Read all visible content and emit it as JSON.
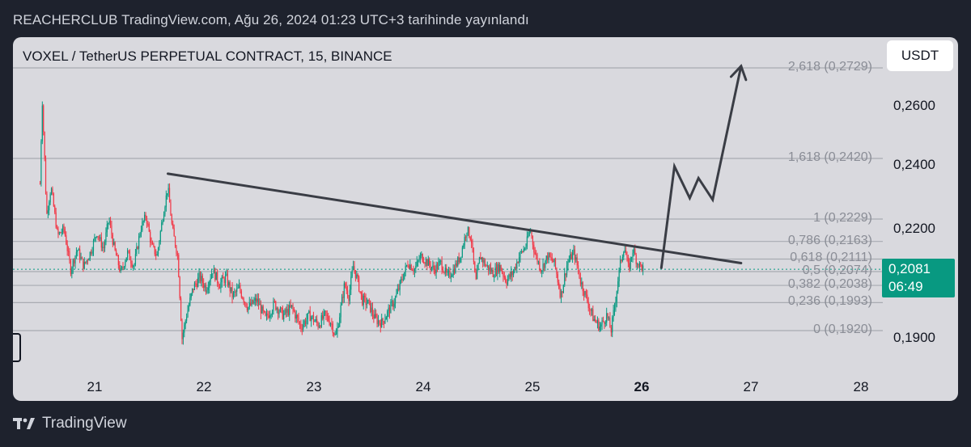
{
  "header": {
    "publish_line": "REACHERCLUB TradingView.com, Ağu 26, 2024 01:23 UTC+3 tarihinde yayınlandı"
  },
  "chart": {
    "symbol_line": "VOXEL / TetherUS PERPETUAL CONTRACT, 15, BINANCE",
    "currency_button": "USDT",
    "last_price": "0,2081",
    "countdown": "06:49",
    "footer_brand": "TradingView"
  },
  "chart_data": {
    "type": "candlestick",
    "exchange": "BINANCE",
    "interval": "15",
    "y_ticks": [
      {
        "label": "0,2600",
        "value": 0.26
      },
      {
        "label": "0,2400",
        "value": 0.24
      },
      {
        "label": "0,2200",
        "value": 0.22
      },
      {
        "label": "0,1900",
        "value": 0.19
      }
    ],
    "x_ticks": [
      {
        "label": "21",
        "day": 21
      },
      {
        "label": "22",
        "day": 22
      },
      {
        "label": "23",
        "day": 23
      },
      {
        "label": "24",
        "day": 24
      },
      {
        "label": "25",
        "day": 25
      },
      {
        "label": "26",
        "day": 26,
        "bold": true
      },
      {
        "label": "27",
        "day": 27
      },
      {
        "label": "28",
        "day": 28
      }
    ],
    "fib_levels": [
      {
        "ratio": 2.618,
        "price": 0.2729,
        "label": "2,618 (0,2729)"
      },
      {
        "ratio": 1.618,
        "price": 0.242,
        "label": "1,618 (0,2420)"
      },
      {
        "ratio": 1,
        "price": 0.2229,
        "label": "1 (0,2229)"
      },
      {
        "ratio": 0.786,
        "price": 0.2163,
        "label": "0,786 (0,2163)"
      },
      {
        "ratio": 0.618,
        "price": 0.2111,
        "label": "0,618 (0,2111)"
      },
      {
        "ratio": 0.5,
        "price": 0.2074,
        "label": "0,5 (0,2074)"
      },
      {
        "ratio": 0.382,
        "price": 0.2038,
        "label": "0,382 (0,2038)"
      },
      {
        "ratio": 0.236,
        "price": 0.1993,
        "label": "0,236 (0,1993)"
      },
      {
        "ratio": 0,
        "price": 0.192,
        "label": "0 (0,1920)"
      }
    ],
    "last_price": 0.2081,
    "trendline": [
      {
        "day": 21.67,
        "price": 0.2372
      },
      {
        "day": 26.91,
        "price": 0.2099
      }
    ],
    "projection_path": [
      {
        "day": 26.18,
        "price": 0.2085
      },
      {
        "day": 26.3,
        "price": 0.2395
      },
      {
        "day": 26.44,
        "price": 0.2295
      },
      {
        "day": 26.52,
        "price": 0.2358
      },
      {
        "day": 26.65,
        "price": 0.229
      },
      {
        "day": 26.91,
        "price": 0.2735
      }
    ],
    "price_path": [
      {
        "day": 20.5,
        "price": 0.234
      },
      {
        "day": 20.52,
        "price": 0.262
      },
      {
        "day": 20.56,
        "price": 0.224
      },
      {
        "day": 20.6,
        "price": 0.233
      },
      {
        "day": 20.66,
        "price": 0.218
      },
      {
        "day": 20.72,
        "price": 0.22
      },
      {
        "day": 20.78,
        "price": 0.208
      },
      {
        "day": 20.84,
        "price": 0.214
      },
      {
        "day": 20.9,
        "price": 0.209
      },
      {
        "day": 20.96,
        "price": 0.213
      },
      {
        "day": 21.02,
        "price": 0.219
      },
      {
        "day": 21.08,
        "price": 0.214
      },
      {
        "day": 21.13,
        "price": 0.223
      },
      {
        "day": 21.18,
        "price": 0.214
      },
      {
        "day": 21.24,
        "price": 0.207
      },
      {
        "day": 21.3,
        "price": 0.213
      },
      {
        "day": 21.36,
        "price": 0.209
      },
      {
        "day": 21.42,
        "price": 0.22
      },
      {
        "day": 21.47,
        "price": 0.224
      },
      {
        "day": 21.52,
        "price": 0.215
      },
      {
        "day": 21.57,
        "price": 0.212
      },
      {
        "day": 21.62,
        "price": 0.223
      },
      {
        "day": 21.67,
        "price": 0.233
      },
      {
        "day": 21.71,
        "price": 0.22
      },
      {
        "day": 21.76,
        "price": 0.212
      },
      {
        "day": 21.8,
        "price": 0.19
      },
      {
        "day": 21.84,
        "price": 0.196
      },
      {
        "day": 21.9,
        "price": 0.203
      },
      {
        "day": 21.96,
        "price": 0.206
      },
      {
        "day": 22.02,
        "price": 0.203
      },
      {
        "day": 22.08,
        "price": 0.208
      },
      {
        "day": 22.14,
        "price": 0.204
      },
      {
        "day": 22.2,
        "price": 0.206
      },
      {
        "day": 22.26,
        "price": 0.201
      },
      {
        "day": 22.32,
        "price": 0.203
      },
      {
        "day": 22.4,
        "price": 0.198
      },
      {
        "day": 22.48,
        "price": 0.2
      },
      {
        "day": 22.56,
        "price": 0.195
      },
      {
        "day": 22.64,
        "price": 0.199
      },
      {
        "day": 22.72,
        "price": 0.196
      },
      {
        "day": 22.8,
        "price": 0.198
      },
      {
        "day": 22.88,
        "price": 0.193
      },
      {
        "day": 22.96,
        "price": 0.196
      },
      {
        "day": 23.04,
        "price": 0.1935
      },
      {
        "day": 23.1,
        "price": 0.196
      },
      {
        "day": 23.16,
        "price": 0.194
      },
      {
        "day": 23.2,
        "price": 0.19
      },
      {
        "day": 23.24,
        "price": 0.197
      },
      {
        "day": 23.28,
        "price": 0.204
      },
      {
        "day": 23.32,
        "price": 0.201
      },
      {
        "day": 23.36,
        "price": 0.209
      },
      {
        "day": 23.4,
        "price": 0.205
      },
      {
        "day": 23.44,
        "price": 0.2
      },
      {
        "day": 23.5,
        "price": 0.199
      },
      {
        "day": 23.56,
        "price": 0.195
      },
      {
        "day": 23.62,
        "price": 0.194
      },
      {
        "day": 23.68,
        "price": 0.197
      },
      {
        "day": 23.74,
        "price": 0.2
      },
      {
        "day": 23.8,
        "price": 0.205
      },
      {
        "day": 23.86,
        "price": 0.21
      },
      {
        "day": 23.92,
        "price": 0.208
      },
      {
        "day": 23.98,
        "price": 0.212
      },
      {
        "day": 24.04,
        "price": 0.21
      },
      {
        "day": 24.1,
        "price": 0.208
      },
      {
        "day": 24.16,
        "price": 0.21
      },
      {
        "day": 24.22,
        "price": 0.206
      },
      {
        "day": 24.28,
        "price": 0.208
      },
      {
        "day": 24.34,
        "price": 0.212
      },
      {
        "day": 24.4,
        "price": 0.22
      },
      {
        "day": 24.44,
        "price": 0.217
      },
      {
        "day": 24.48,
        "price": 0.204
      },
      {
        "day": 24.52,
        "price": 0.212
      },
      {
        "day": 24.58,
        "price": 0.209
      },
      {
        "day": 24.64,
        "price": 0.207
      },
      {
        "day": 24.7,
        "price": 0.209
      },
      {
        "day": 24.76,
        "price": 0.205
      },
      {
        "day": 24.82,
        "price": 0.207
      },
      {
        "day": 24.88,
        "price": 0.212
      },
      {
        "day": 24.94,
        "price": 0.215
      },
      {
        "day": 24.98,
        "price": 0.22
      },
      {
        "day": 25.02,
        "price": 0.213
      },
      {
        "day": 25.08,
        "price": 0.208
      },
      {
        "day": 25.14,
        "price": 0.212
      },
      {
        "day": 25.2,
        "price": 0.21
      },
      {
        "day": 25.26,
        "price": 0.201
      },
      {
        "day": 25.32,
        "price": 0.21
      },
      {
        "day": 25.38,
        "price": 0.213
      },
      {
        "day": 25.44,
        "price": 0.205
      },
      {
        "day": 25.5,
        "price": 0.2
      },
      {
        "day": 25.56,
        "price": 0.195
      },
      {
        "day": 25.62,
        "price": 0.193
      },
      {
        "day": 25.68,
        "price": 0.196
      },
      {
        "day": 25.72,
        "price": 0.192
      },
      {
        "day": 25.76,
        "price": 0.2
      },
      {
        "day": 25.8,
        "price": 0.209
      },
      {
        "day": 25.84,
        "price": 0.215
      },
      {
        "day": 25.88,
        "price": 0.208
      },
      {
        "day": 25.92,
        "price": 0.214
      },
      {
        "day": 25.96,
        "price": 0.21
      },
      {
        "day": 26.02,
        "price": 0.2081
      }
    ]
  }
}
